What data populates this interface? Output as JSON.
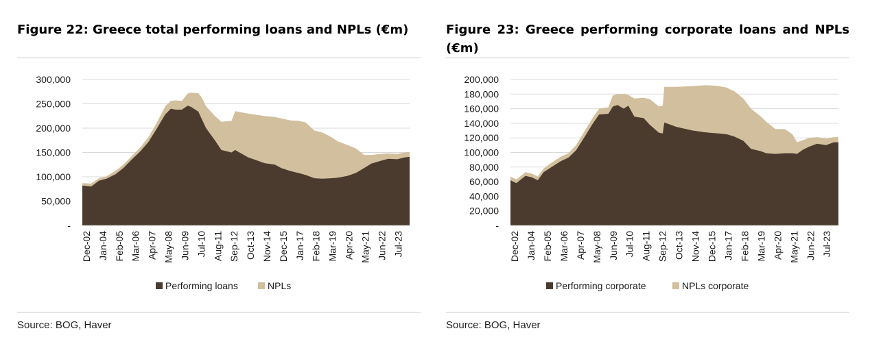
{
  "panels": [
    {
      "title": "Figure 22: Greece total performing loans and NPLs (€m)",
      "source": "Source: BOG, Haver",
      "chart_data": {
        "type": "area",
        "stacked": true,
        "x_tick_labels": [
          "Dec-02",
          "Jan-04",
          "Feb-05",
          "Mar-06",
          "Apr-07",
          "May-08",
          "Jun-09",
          "Jul-10",
          "Aug-11",
          "Sep-12",
          "Oct-13",
          "Nov-14",
          "Dec-15",
          "Jan-17",
          "Feb-18",
          "Mar-19",
          "Apr-20",
          "May-21",
          "Jun-22",
          "Jul-23"
        ],
        "y_tick_labels": [
          "-",
          "50,000",
          "100,000",
          "150,000",
          "200,000",
          "250,000",
          "300,000"
        ],
        "ylim": [
          0,
          300000
        ],
        "grid": true,
        "legend_position": "bottom",
        "x": [
          2002.92,
          2003.5,
          2004.0,
          2004.5,
          2005.08,
          2005.6,
          2006.17,
          2006.7,
          2007.25,
          2007.8,
          2008.33,
          2008.7,
          2009.0,
          2009.42,
          2009.8,
          2010.0,
          2010.5,
          2010.7,
          2011.0,
          2011.58,
          2012.0,
          2012.67,
          2012.9,
          2013.75,
          2014.83,
          2015.5,
          2015.92,
          2016.5,
          2017.0,
          2017.5,
          2018.08,
          2018.6,
          2019.17,
          2019.6,
          2020.25,
          2020.8,
          2021.33,
          2021.8,
          2022.42,
          2022.9,
          2023.5,
          2024.0,
          2024.3
        ],
        "series": [
          {
            "name": "Performing loans",
            "color": "#4a3b2e",
            "values": [
              82000,
              80000,
              92000,
              96000,
              105000,
              118000,
              136000,
              152000,
              172000,
              200000,
              228000,
              240000,
              238000,
              238000,
              246000,
              244000,
              234000,
              220000,
              200000,
              175000,
              155000,
              150000,
              155000,
              140000,
              128000,
              125000,
              118000,
              112000,
              108000,
              104000,
              97000,
              96000,
              97000,
              98000,
              102000,
              108000,
              118000,
              127000,
              133000,
              137000,
              136000,
              140000,
              141000
            ]
          },
          {
            "name": "NPLs",
            "color": "#d2bf9d",
            "values": [
              5000,
              6000,
              5000,
              5000,
              7000,
              7000,
              7000,
              8000,
              10000,
              12000,
              17000,
              16000,
              19000,
              18000,
              25000,
              29000,
              38000,
              44000,
              45000,
              50000,
              58000,
              65000,
              80000,
              90000,
              97000,
              98000,
              102000,
              104000,
              107000,
              108000,
              98000,
              95000,
              85000,
              75000,
              63000,
              50000,
              27000,
              18000,
              14000,
              11000,
              11000,
              10000,
              10000
            ]
          }
        ]
      }
    },
    {
      "title": "Figure 23: Greece performing corporate loans and NPLs (€m)",
      "source": "Source: BOG, Haver",
      "chart_data": {
        "type": "area",
        "stacked": true,
        "x_tick_labels": [
          "Dec-02",
          "Jan-04",
          "Feb-05",
          "Mar-06",
          "Apr-07",
          "May-08",
          "Jun-09",
          "Jul-10",
          "Aug-11",
          "Sep-12",
          "Oct-13",
          "Nov-14",
          "Dec-15",
          "Jan-17",
          "Feb-18",
          "Mar-19",
          "Apr-20",
          "May-21",
          "Jun-22",
          "Jul-23"
        ],
        "y_tick_labels": [
          "-",
          "20,000",
          "40,000",
          "60,000",
          "80,000",
          "100,000",
          "120,000",
          "140,000",
          "160,000",
          "180,000",
          "200,000"
        ],
        "ylim": [
          0,
          200000
        ],
        "grid": true,
        "legend_position": "bottom",
        "x": [
          2002.92,
          2003.3,
          2003.9,
          2004.3,
          2004.7,
          2005.08,
          2005.6,
          2006.2,
          2006.7,
          2007.2,
          2007.8,
          2008.3,
          2008.7,
          2009.3,
          2009.6,
          2009.9,
          2010.3,
          2010.6,
          2011.0,
          2011.6,
          2012.0,
          2012.6,
          2012.85,
          2012.95,
          2013.75,
          2014.8,
          2015.5,
          2015.9,
          2016.5,
          2017.0,
          2017.5,
          2018.1,
          2018.6,
          2019.2,
          2019.6,
          2020.2,
          2020.8,
          2021.3,
          2021.6,
          2022.0,
          2022.4,
          2022.9,
          2023.5,
          2024.0,
          2024.3
        ],
        "series": [
          {
            "name": "Performing corporate",
            "color": "#4a3b2e",
            "values": [
              62000,
              58000,
              68000,
              66000,
              62000,
              73000,
              80000,
              88000,
              93000,
              103000,
              123000,
              140000,
              152000,
              153000,
              163000,
              165000,
              160000,
              164000,
              149000,
              147000,
              138000,
              127000,
              126000,
              141000,
              135000,
              130000,
              128000,
              127000,
              126000,
              125000,
              122000,
              116000,
              105000,
              102000,
              99000,
              98000,
              99000,
              99000,
              98000,
              104000,
              108000,
              112000,
              110000,
              114000,
              114000
            ]
          },
          {
            "name": "NPLs corporate",
            "color": "#d2bf9d",
            "values": [
              5000,
              5000,
              5000,
              5000,
              5000,
              5000,
              6000,
              6000,
              6000,
              7000,
              8000,
              8000,
              8000,
              9000,
              15000,
              15000,
              20000,
              15000,
              25000,
              28000,
              35000,
              36000,
              38000,
              49000,
              55000,
              61000,
              64000,
              65000,
              65000,
              64000,
              62000,
              58000,
              55000,
              48000,
              43000,
              34000,
              33000,
              26000,
              16000,
              13000,
              12000,
              9000,
              9000,
              7000,
              7000
            ]
          }
        ]
      }
    }
  ]
}
